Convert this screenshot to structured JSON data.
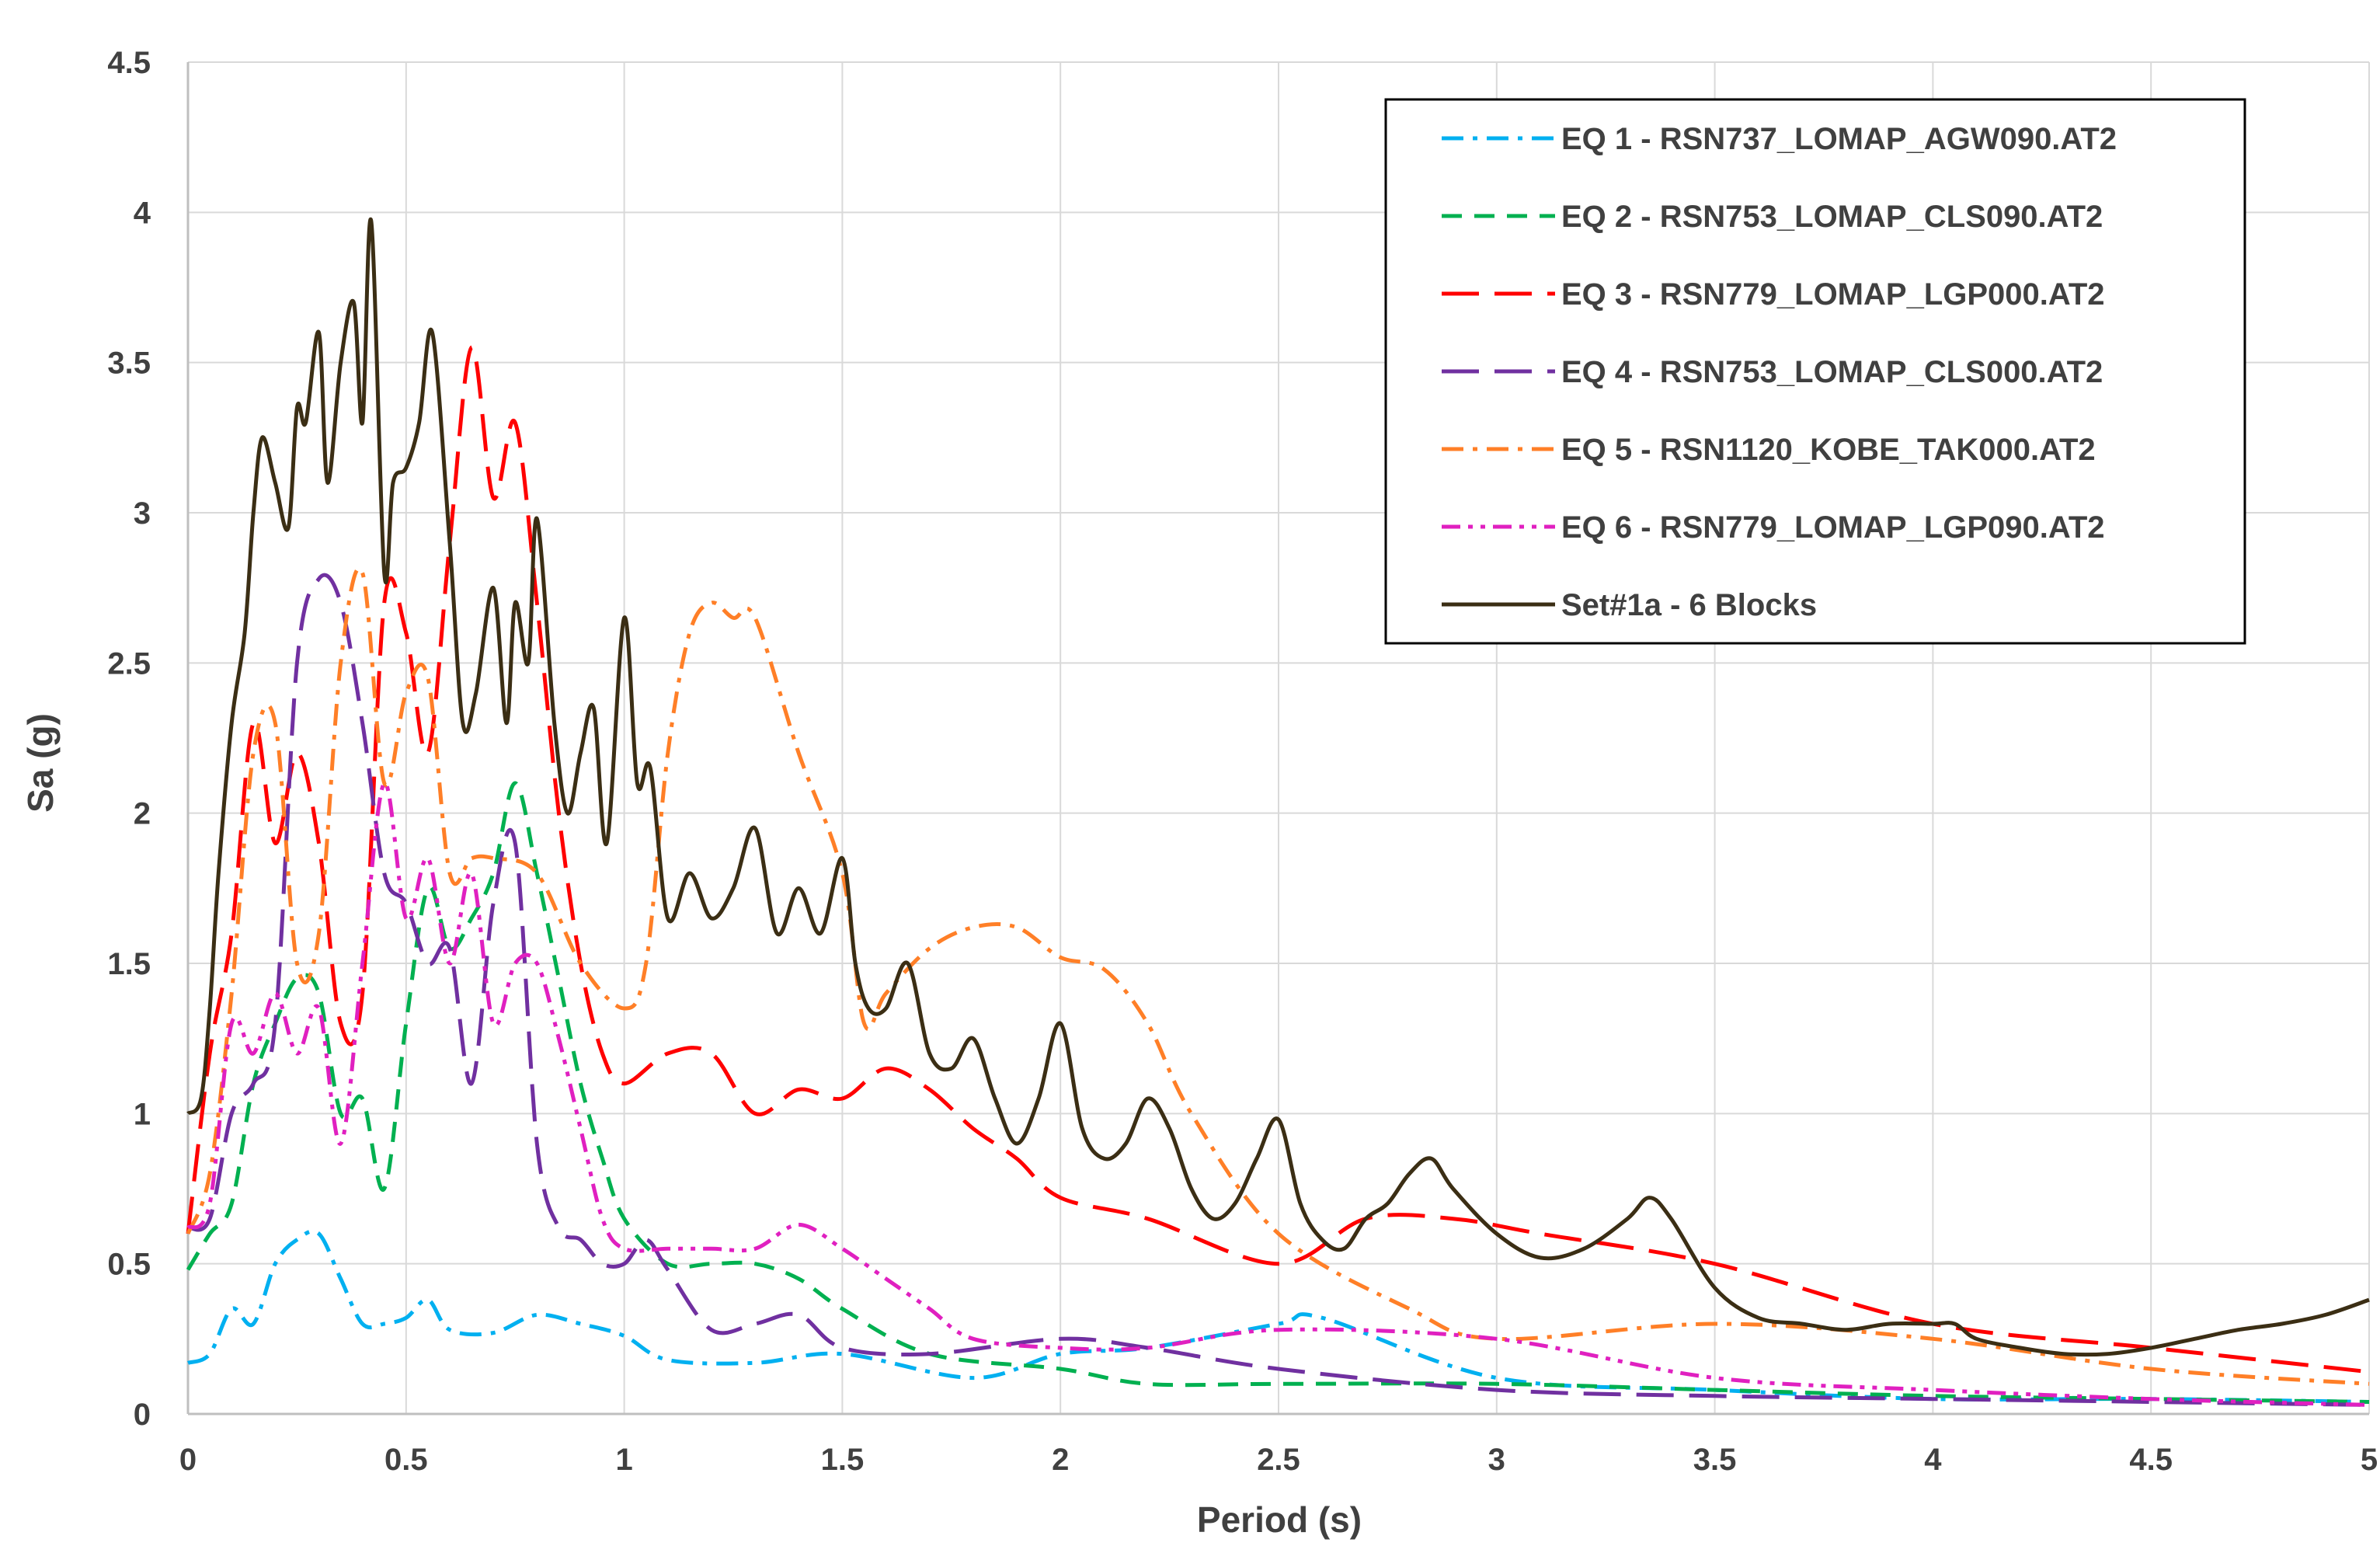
{
  "chart_data": {
    "type": "line",
    "title": "",
    "xlabel": "Period (s)",
    "ylabel": "Sa (g)",
    "xlim": [
      0,
      5
    ],
    "ylim": [
      0,
      4.5
    ],
    "grid": true,
    "legend_position": "top-right",
    "x_ticks": [
      "0",
      "0.5",
      "1",
      "1.5",
      "2",
      "2.5",
      "3",
      "3.5",
      "4",
      "4.5",
      "5"
    ],
    "y_ticks": [
      "0",
      "0.5",
      "1",
      "1.5",
      "2",
      "2.5",
      "3",
      "3.5",
      "4",
      "4.5"
    ],
    "series": [
      {
        "name": "EQ 1 - RSN737_LOMAP_AGW090.AT2",
        "color": "#00B0F0",
        "style": "dashdot",
        "x": [
          0,
          0.05,
          0.1,
          0.15,
          0.2,
          0.25,
          0.3,
          0.35,
          0.4,
          0.45,
          0.5,
          0.55,
          0.6,
          0.7,
          0.8,
          0.9,
          1.0,
          1.1,
          1.3,
          1.5,
          1.8,
          2.0,
          2.2,
          2.5,
          2.6,
          3.0,
          3.5,
          4.0,
          4.5,
          5.0
        ],
        "values": [
          0.17,
          0.2,
          0.35,
          0.3,
          0.5,
          0.58,
          0.6,
          0.45,
          0.3,
          0.3,
          0.32,
          0.38,
          0.28,
          0.27,
          0.33,
          0.3,
          0.26,
          0.18,
          0.17,
          0.2,
          0.12,
          0.2,
          0.22,
          0.3,
          0.32,
          0.12,
          0.08,
          0.05,
          0.05,
          0.04
        ]
      },
      {
        "name": "EQ 2 - RSN753_LOMAP_CLS090.AT2",
        "color": "#00B050",
        "style": "dashed",
        "x": [
          0,
          0.05,
          0.1,
          0.15,
          0.2,
          0.25,
          0.3,
          0.35,
          0.4,
          0.45,
          0.5,
          0.55,
          0.6,
          0.65,
          0.7,
          0.75,
          0.8,
          0.85,
          0.9,
          0.95,
          1.0,
          1.1,
          1.2,
          1.3,
          1.4,
          1.5,
          1.7,
          2.0,
          2.2,
          2.5,
          3.0,
          3.5,
          4.0,
          4.5,
          5.0
        ],
        "values": [
          0.48,
          0.6,
          0.7,
          1.1,
          1.3,
          1.45,
          1.4,
          1.0,
          1.05,
          0.75,
          1.3,
          1.75,
          1.55,
          1.65,
          1.8,
          2.1,
          1.8,
          1.45,
          1.1,
          0.85,
          0.65,
          0.5,
          0.5,
          0.5,
          0.45,
          0.35,
          0.2,
          0.15,
          0.1,
          0.1,
          0.1,
          0.08,
          0.06,
          0.05,
          0.04
        ]
      },
      {
        "name": "EQ 3 - RSN779_LOMAP_LGP000.AT2",
        "color": "#FF0000",
        "style": "longdash",
        "x": [
          0,
          0.05,
          0.1,
          0.15,
          0.2,
          0.25,
          0.3,
          0.35,
          0.4,
          0.45,
          0.5,
          0.55,
          0.6,
          0.65,
          0.7,
          0.75,
          0.8,
          0.85,
          0.9,
          0.95,
          1.0,
          1.1,
          1.2,
          1.3,
          1.4,
          1.5,
          1.6,
          1.7,
          1.8,
          1.9,
          2.0,
          2.2,
          2.5,
          2.7,
          2.9,
          3.1,
          3.5,
          4.0,
          4.5,
          5.0
        ],
        "values": [
          0.6,
          1.2,
          1.6,
          2.3,
          1.9,
          2.2,
          1.9,
          1.3,
          1.4,
          2.7,
          2.6,
          2.2,
          2.9,
          3.55,
          3.05,
          3.3,
          2.7,
          2.0,
          1.5,
          1.2,
          1.1,
          1.2,
          1.2,
          1.0,
          1.08,
          1.05,
          1.15,
          1.08,
          0.95,
          0.85,
          0.72,
          0.65,
          0.5,
          0.65,
          0.65,
          0.6,
          0.5,
          0.3,
          0.22,
          0.14
        ]
      },
      {
        "name": "EQ 4 - RSN753_LOMAP_CLS000.AT2",
        "color": "#7030A0",
        "style": "longdash",
        "x": [
          0,
          0.05,
          0.1,
          0.15,
          0.2,
          0.25,
          0.3,
          0.35,
          0.4,
          0.45,
          0.5,
          0.55,
          0.6,
          0.65,
          0.7,
          0.75,
          0.8,
          0.85,
          0.9,
          0.95,
          1.0,
          1.05,
          1.1,
          1.2,
          1.3,
          1.4,
          1.5,
          1.7,
          2.0,
          2.2,
          2.5,
          3.0,
          3.5,
          4.0,
          4.5,
          5.0
        ],
        "values": [
          0.62,
          0.65,
          1.0,
          1.1,
          1.3,
          2.5,
          2.78,
          2.7,
          2.3,
          1.8,
          1.7,
          1.5,
          1.55,
          1.1,
          1.7,
          1.9,
          0.9,
          0.62,
          0.58,
          0.5,
          0.5,
          0.58,
          0.48,
          0.28,
          0.3,
          0.33,
          0.22,
          0.2,
          0.25,
          0.22,
          0.15,
          0.08,
          0.06,
          0.05,
          0.04,
          0.03
        ]
      },
      {
        "name": "EQ 5 - RSN1120_KOBE_TAK000.AT2",
        "color": "#FF7F27",
        "style": "dashdot",
        "x": [
          0,
          0.05,
          0.1,
          0.15,
          0.2,
          0.25,
          0.3,
          0.35,
          0.4,
          0.45,
          0.5,
          0.55,
          0.6,
          0.65,
          0.7,
          0.8,
          0.9,
          1.0,
          1.05,
          1.1,
          1.15,
          1.2,
          1.25,
          1.3,
          1.4,
          1.5,
          1.55,
          1.6,
          1.7,
          1.8,
          1.9,
          2.0,
          2.1,
          2.2,
          2.3,
          2.5,
          2.8,
          3.0,
          3.5,
          4.0,
          4.5,
          5.0
        ],
        "values": [
          0.6,
          0.8,
          1.4,
          2.2,
          2.3,
          1.5,
          1.6,
          2.5,
          2.8,
          2.1,
          2.4,
          2.45,
          1.8,
          1.85,
          1.85,
          1.8,
          1.5,
          1.35,
          1.5,
          2.2,
          2.6,
          2.7,
          2.65,
          2.65,
          2.2,
          1.8,
          1.3,
          1.4,
          1.55,
          1.62,
          1.62,
          1.52,
          1.48,
          1.3,
          1.0,
          0.6,
          0.35,
          0.25,
          0.3,
          0.25,
          0.15,
          0.1
        ]
      },
      {
        "name": "EQ 6 - RSN779_LOMAP_LGP090.AT2",
        "color": "#E020C0",
        "style": "dashdotdot",
        "x": [
          0,
          0.05,
          0.1,
          0.15,
          0.2,
          0.25,
          0.3,
          0.35,
          0.4,
          0.45,
          0.5,
          0.55,
          0.6,
          0.65,
          0.7,
          0.75,
          0.8,
          0.85,
          0.9,
          0.95,
          1.0,
          1.1,
          1.2,
          1.3,
          1.4,
          1.5,
          1.6,
          1.7,
          1.8,
          2.0,
          2.2,
          2.5,
          3.0,
          3.5,
          4.0,
          4.5,
          5.0
        ],
        "values": [
          0.62,
          0.7,
          1.3,
          1.2,
          1.4,
          1.2,
          1.35,
          0.9,
          1.5,
          2.1,
          1.65,
          1.85,
          1.5,
          1.8,
          1.3,
          1.5,
          1.5,
          1.25,
          0.95,
          0.65,
          0.55,
          0.55,
          0.55,
          0.55,
          0.63,
          0.55,
          0.45,
          0.35,
          0.25,
          0.22,
          0.22,
          0.28,
          0.25,
          0.12,
          0.08,
          0.05,
          0.03
        ]
      },
      {
        "name": "Set#1a - 6 Blocks",
        "color": "#3B2E14",
        "style": "solid",
        "x": [
          0,
          0.03,
          0.05,
          0.07,
          0.1,
          0.13,
          0.15,
          0.17,
          0.2,
          0.23,
          0.25,
          0.27,
          0.3,
          0.32,
          0.35,
          0.38,
          0.4,
          0.42,
          0.45,
          0.47,
          0.5,
          0.53,
          0.56,
          0.6,
          0.63,
          0.66,
          0.7,
          0.73,
          0.75,
          0.78,
          0.8,
          0.84,
          0.87,
          0.9,
          0.93,
          0.96,
          1.0,
          1.03,
          1.06,
          1.1,
          1.15,
          1.2,
          1.25,
          1.3,
          1.35,
          1.4,
          1.45,
          1.5,
          1.53,
          1.56,
          1.6,
          1.65,
          1.7,
          1.75,
          1.8,
          1.85,
          1.9,
          1.95,
          2.0,
          2.05,
          2.1,
          2.15,
          2.2,
          2.25,
          2.3,
          2.35,
          2.4,
          2.45,
          2.5,
          2.55,
          2.6,
          2.65,
          2.7,
          2.75,
          2.8,
          2.85,
          2.9,
          3.0,
          3.1,
          3.2,
          3.3,
          3.35,
          3.4,
          3.5,
          3.6,
          3.7,
          3.8,
          3.9,
          4.0,
          4.05,
          4.1,
          4.2,
          4.3,
          4.4,
          4.5,
          4.6,
          4.7,
          4.8,
          4.9,
          5.0
        ],
        "values": [
          1.0,
          1.05,
          1.35,
          1.8,
          2.3,
          2.6,
          3.0,
          3.25,
          3.1,
          2.95,
          3.35,
          3.3,
          3.6,
          3.1,
          3.5,
          3.7,
          3.3,
          3.97,
          2.8,
          3.1,
          3.15,
          3.3,
          3.6,
          2.9,
          2.3,
          2.4,
          2.75,
          2.3,
          2.7,
          2.5,
          2.98,
          2.3,
          2.0,
          2.2,
          2.35,
          1.9,
          2.65,
          2.1,
          2.15,
          1.65,
          1.8,
          1.65,
          1.75,
          1.95,
          1.6,
          1.75,
          1.6,
          1.85,
          1.5,
          1.35,
          1.35,
          1.5,
          1.2,
          1.15,
          1.25,
          1.05,
          0.9,
          1.05,
          1.3,
          0.95,
          0.85,
          0.9,
          1.05,
          0.95,
          0.75,
          0.65,
          0.7,
          0.85,
          0.98,
          0.7,
          0.58,
          0.55,
          0.65,
          0.7,
          0.8,
          0.85,
          0.75,
          0.6,
          0.52,
          0.55,
          0.65,
          0.72,
          0.65,
          0.42,
          0.32,
          0.3,
          0.28,
          0.3,
          0.3,
          0.3,
          0.25,
          0.22,
          0.2,
          0.2,
          0.22,
          0.25,
          0.28,
          0.3,
          0.33,
          0.38
        ]
      }
    ]
  }
}
